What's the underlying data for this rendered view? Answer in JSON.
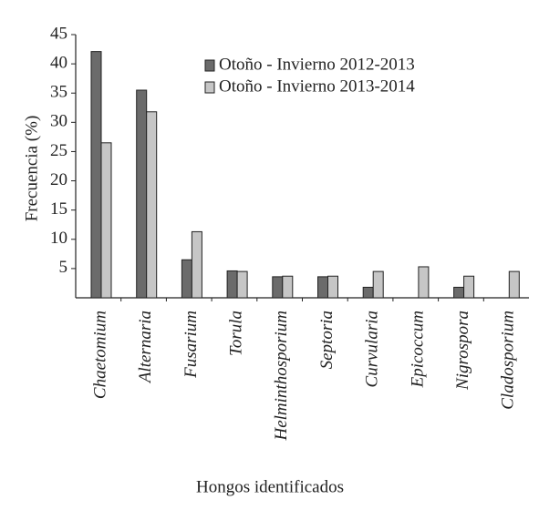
{
  "chart_data": {
    "type": "bar",
    "x_label": "Hongos identificados",
    "y_label": "Frecuencia (%)",
    "categories": [
      "Chaetomium",
      "Alternaria",
      "Fusarium",
      "Torula",
      "Helminthosporium",
      "Septoria",
      "Curvularia",
      "Epicoccum",
      "Nigrospora",
      "Cladosporium"
    ],
    "series": [
      {
        "name": "Otoño - Invierno 2012-2013",
        "color": "#6b6b6b",
        "values": [
          42.1,
          35.5,
          6.5,
          4.6,
          3.6,
          3.6,
          1.8,
          0,
          1.8,
          0
        ]
      },
      {
        "name": "Otoño - Invierno 2013-2014",
        "color": "#c6c6c6",
        "values": [
          26.5,
          31.8,
          11.3,
          4.5,
          3.7,
          3.7,
          4.5,
          5.3,
          3.7,
          4.5
        ]
      }
    ],
    "ylim": [
      0,
      45
    ],
    "yticks": [
      5,
      10,
      15,
      20,
      25,
      30,
      35,
      40,
      45
    ],
    "grid": false,
    "legend": "top-right"
  }
}
